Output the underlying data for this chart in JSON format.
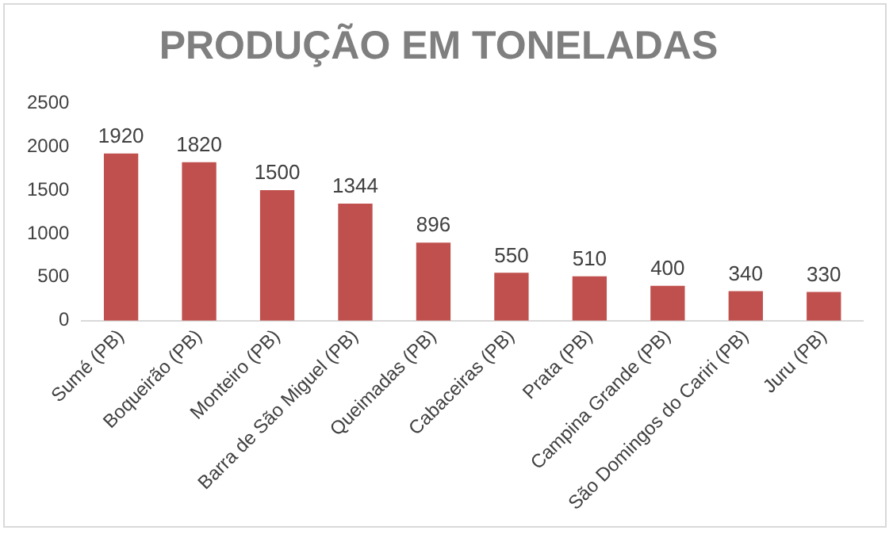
{
  "chart_data": {
    "type": "bar",
    "title": "PRODUÇÃO EM TONELADAS",
    "categories": [
      "Sumé (PB)",
      "Boqueirão (PB)",
      "Monteiro (PB)",
      "Barra de São Miguel (PB)",
      "Queimadas (PB)",
      "Cabaceiras (PB)",
      "Prata (PB)",
      "Campina Grande (PB)",
      "São Domingos do Cariri (PB)",
      "Juru (PB)"
    ],
    "values": [
      1920,
      1820,
      1500,
      1344,
      896,
      550,
      510,
      400,
      340,
      330
    ],
    "color": "#c0504d",
    "ylim": [
      0,
      2500
    ],
    "yticks": [
      0,
      500,
      1000,
      1500,
      2000,
      2500
    ],
    "grid": false,
    "data_labels": true,
    "legend": false
  }
}
